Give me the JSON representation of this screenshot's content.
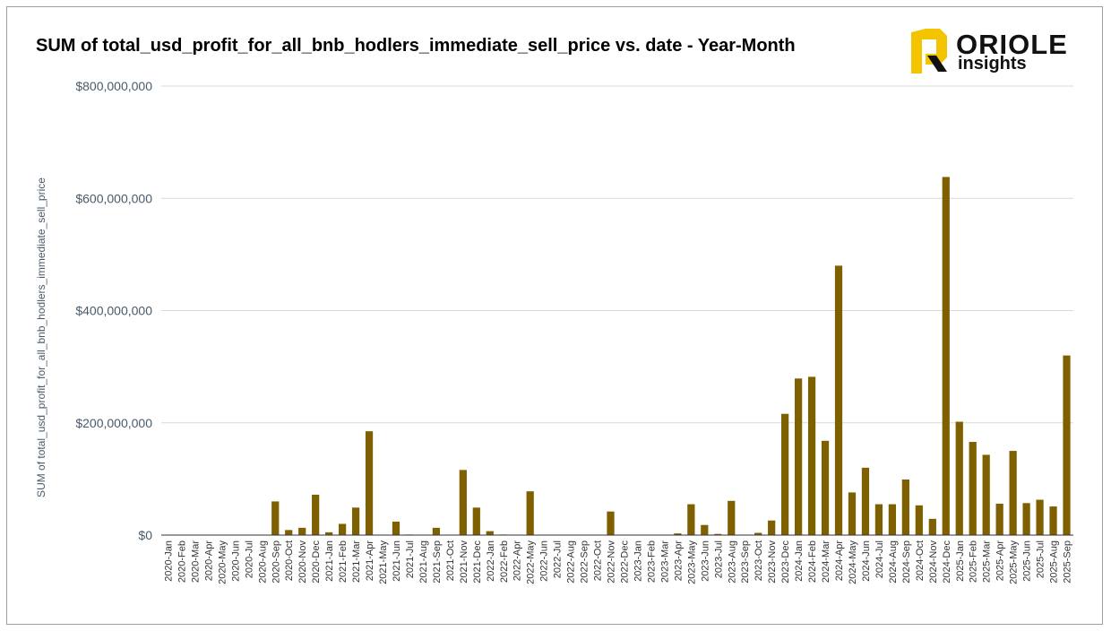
{
  "title": "SUM of total_usd_profit_for_all_bnb_hodlers_immediate_sell_price vs. date - Year-Month",
  "logo": {
    "line1": "ORIOLE",
    "line2": "insights",
    "accent": "#f5c400"
  },
  "colors": {
    "bar": "#7f6000",
    "grid": "#d9d9d9",
    "axis": "#333333"
  },
  "chart_data": {
    "type": "bar",
    "title": "SUM of total_usd_profit_for_all_bnb_hodlers_immediate_sell_price vs. date - Year-Month",
    "xlabel": "",
    "ylabel": "SUM of total_usd_profit_for_all_bnb_hodlers_immediate_sell_price",
    "ylim": [
      0,
      800000000
    ],
    "yticks": [
      0,
      200000000,
      400000000,
      600000000,
      800000000
    ],
    "ytick_labels": [
      "$0",
      "$200,000,000",
      "$400,000,000",
      "$600,000,000",
      "$800,000,000"
    ],
    "grid": true,
    "categories": [
      "2020-Jan",
      "2020-Feb",
      "2020-Mar",
      "2020-Apr",
      "2020-May",
      "2020-Jun",
      "2020-Jul",
      "2020-Aug",
      "2020-Sep",
      "2020-Oct",
      "2020-Nov",
      "2020-Dec",
      "2021-Jan",
      "2021-Feb",
      "2021-Mar",
      "2021-Apr",
      "2021-May",
      "2021-Jun",
      "2021-Jul",
      "2021-Aug",
      "2021-Sep",
      "2021-Oct",
      "2021-Nov",
      "2021-Dec",
      "2022-Jan",
      "2022-Feb",
      "2022-Apr",
      "2022-May",
      "2022-Jun",
      "2022-Jul",
      "2022-Aug",
      "2022-Sep",
      "2022-Oct",
      "2022-Nov",
      "2022-Dec",
      "2023-Jan",
      "2023-Feb",
      "2023-Mar",
      "2023-Apr",
      "2023-May",
      "2023-Jun",
      "2023-Jul",
      "2023-Aug",
      "2023-Sep",
      "2023-Oct",
      "2023-Nov",
      "2023-Dec",
      "2024-Jan",
      "2024-Feb",
      "2024-Mar",
      "2024-Apr",
      "2024-May",
      "2024-Jun",
      "2024-Jul",
      "2024-Aug",
      "2024-Sep",
      "2024-Oct",
      "2024-Nov",
      "2024-Dec",
      "2025-Jan",
      "2025-Feb",
      "2025-Mar",
      "2025-Apr",
      "2025-May",
      "2025-Jun",
      "2025-Jul",
      "2025-Aug",
      "2025-Sep"
    ],
    "values": [
      0,
      0,
      0,
      0,
      0,
      0,
      0,
      0,
      60000000,
      9000000,
      13000000,
      72000000,
      5000000,
      20000000,
      49000000,
      185000000,
      0,
      24000000,
      1000000,
      0,
      13000000,
      0,
      116000000,
      49000000,
      7000000,
      1000000,
      0,
      78000000,
      0,
      0,
      0,
      0,
      0,
      42000000,
      0,
      0,
      0,
      0,
      3000000,
      55000000,
      18000000,
      2000000,
      61000000,
      0,
      4000000,
      26000000,
      216000000,
      279000000,
      282000000,
      168000000,
      480000000,
      76000000,
      120000000,
      55000000,
      55000000,
      99000000,
      53000000,
      29000000,
      638000000,
      202000000,
      166000000,
      143000000,
      56000000,
      150000000,
      57000000,
      63000000,
      51000000,
      320000000
    ]
  }
}
